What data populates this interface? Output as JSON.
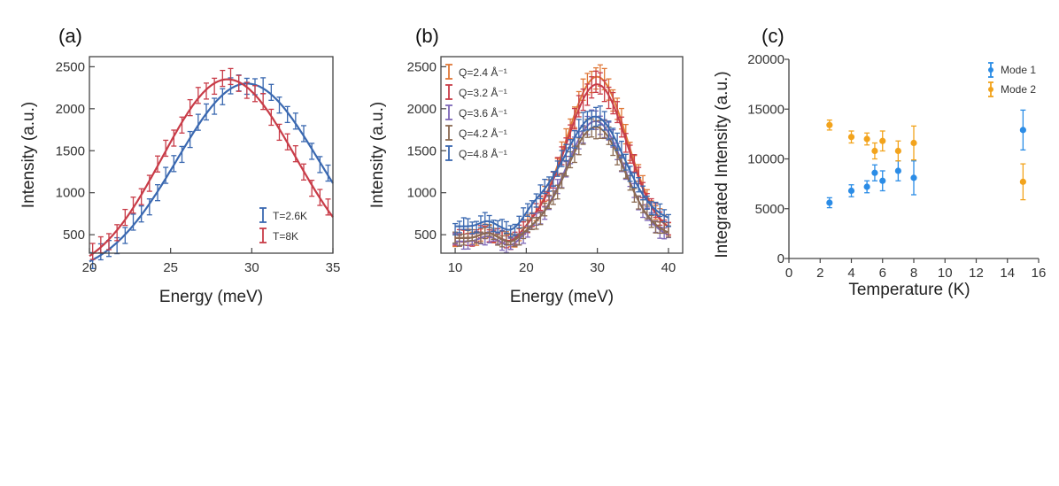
{
  "colors": {
    "blue": "#3a68b0",
    "red": "#c83c48",
    "orange": "#e07838",
    "purple": "#7e68b8",
    "brown": "#8a6a52",
    "mode1": "#2b8ce6",
    "mode2": "#f2a31c"
  },
  "chart_data": [
    {
      "panel": "(a)",
      "type": "line",
      "xlabel": "Energy (meV)",
      "ylabel": "Intensity (a.u.)",
      "xlim": [
        20,
        35
      ],
      "ylim": [
        280,
        2620
      ],
      "xticks": [
        20,
        25,
        30,
        35
      ],
      "yticks": [
        500,
        1000,
        1500,
        2000,
        2500
      ],
      "legend_position": "bottom-right",
      "series": [
        {
          "name": "T=2.6K",
          "color": "#3a68b0",
          "center": 29.7,
          "peak": 2300,
          "width_left": 4.3,
          "width_right": 4.4,
          "baseline": 0,
          "err": 95
        },
        {
          "name": "T=8K",
          "color": "#c83c48",
          "center": 28.5,
          "peak": 2350,
          "width_left": 4.0,
          "width_right": 4.2,
          "baseline": 0,
          "err": 95
        }
      ]
    },
    {
      "panel": "(b)",
      "type": "line",
      "xlabel": "Energy (meV)",
      "ylabel": "Intensity (a.u.)",
      "xlim": [
        8,
        42
      ],
      "ylim": [
        280,
        2620
      ],
      "xticks": [
        10,
        20,
        30,
        40
      ],
      "yticks": [
        500,
        1000,
        1500,
        2000,
        2500
      ],
      "legend_position": "top-left",
      "series": [
        {
          "name": "Q=2.4 Å⁻¹",
          "color": "#e07838",
          "center": 30.0,
          "peak": 2320,
          "width": 4.2,
          "base_low": 460,
          "base_high": 560,
          "err": 110
        },
        {
          "name": "Q=3.2 Å⁻¹",
          "color": "#c83c48",
          "center": 30.0,
          "peak": 2230,
          "width": 4.2,
          "base_low": 460,
          "base_high": 560,
          "err": 110
        },
        {
          "name": "Q=3.6 Å⁻¹",
          "color": "#7e68b8",
          "center": 29.8,
          "peak": 1790,
          "width": 4.0,
          "base_low": 420,
          "base_high": 520,
          "err": 100
        },
        {
          "name": "Q=4.2 Å⁻¹",
          "color": "#8a6a52",
          "center": 29.8,
          "peak": 1740,
          "width": 4.0,
          "base_low": 460,
          "base_high": 530,
          "err": 100
        },
        {
          "name": "Q=4.8 Å⁻¹",
          "color": "#3a68b0",
          "center": 29.8,
          "peak": 1770,
          "width": 4.0,
          "base_low": 600,
          "base_high": 820,
          "err": 100
        }
      ]
    },
    {
      "panel": "(c)",
      "type": "scatter",
      "xlabel": "Temperature (K)",
      "ylabel": "Integrated Intensity (a.u.)",
      "xlim": [
        0,
        16
      ],
      "ylim": [
        0,
        20000
      ],
      "xticks": [
        0,
        2,
        4,
        6,
        8,
        10,
        12,
        14,
        16
      ],
      "yticks": [
        0,
        5000,
        10000,
        15000,
        20000
      ],
      "legend_position": "top-right",
      "series": [
        {
          "name": "Mode 1",
          "color": "#2b8ce6",
          "x": [
            2.6,
            4.0,
            5.0,
            5.5,
            6.0,
            7.0,
            8.0,
            15.0
          ],
          "y": [
            5600,
            6800,
            7200,
            8600,
            7800,
            8800,
            8100,
            12900
          ],
          "err": [
            500,
            600,
            600,
            800,
            1000,
            1000,
            1700,
            2000
          ]
        },
        {
          "name": "Mode 2",
          "color": "#f2a31c",
          "x": [
            2.6,
            4.0,
            5.0,
            5.5,
            6.0,
            7.0,
            8.0,
            15.0
          ],
          "y": [
            13400,
            12200,
            12000,
            10800,
            11800,
            10800,
            11600,
            7700
          ],
          "err": [
            500,
            600,
            600,
            800,
            1000,
            1000,
            1700,
            1800
          ]
        }
      ]
    }
  ]
}
